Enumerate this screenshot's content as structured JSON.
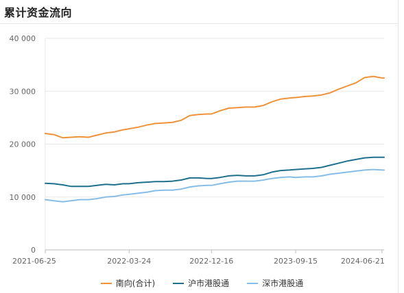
{
  "page": {
    "title": "累计资金流向"
  },
  "colors": {
    "south_total": "#f0923a",
    "sh_connect": "#1f6f8f",
    "sz_connect": "#86bde8",
    "grid": "#e8e8e8",
    "axis": "#bbbbbb"
  },
  "chart_data": {
    "type": "line",
    "title": "累计资金流向",
    "xlabel": "",
    "ylabel": "",
    "x_ticks": [
      "2021-06-25",
      "2022-03-24",
      "2022-12-16",
      "2023-09-15",
      "2024-06-21"
    ],
    "y_ticks": [
      "0",
      "10 000",
      "20 000",
      "30 000",
      "40 000"
    ],
    "ylim": [
      0,
      40000
    ],
    "grid": true,
    "legend_position": "bottom",
    "x": [
      "2021-06-25",
      "2021-07-23",
      "2021-08-20",
      "2021-09-17",
      "2021-10-15",
      "2021-11-12",
      "2021-12-10",
      "2022-01-07",
      "2022-02-04",
      "2022-03-04",
      "2022-03-24",
      "2022-04-22",
      "2022-05-20",
      "2022-06-17",
      "2022-07-15",
      "2022-08-12",
      "2022-09-09",
      "2022-10-07",
      "2022-11-04",
      "2022-12-02",
      "2022-12-16",
      "2023-01-13",
      "2023-02-10",
      "2023-03-10",
      "2023-04-07",
      "2023-05-05",
      "2023-06-02",
      "2023-06-30",
      "2023-07-28",
      "2023-08-25",
      "2023-09-15",
      "2023-10-13",
      "2023-11-10",
      "2023-12-08",
      "2024-01-05",
      "2024-02-02",
      "2024-03-01",
      "2024-03-29",
      "2024-04-26",
      "2024-05-24",
      "2024-06-21",
      "2024-06-28"
    ],
    "series": [
      {
        "name": "南向(合计)",
        "color_key": "south_total",
        "values": [
          22000,
          21800,
          21200,
          21300,
          21400,
          21300,
          21700,
          22100,
          22300,
          22700,
          22900,
          23200,
          23600,
          23900,
          24000,
          24100,
          24500,
          25400,
          25600,
          25700,
          25700,
          26300,
          26800,
          26900,
          27000,
          27000,
          27300,
          28000,
          28500,
          28700,
          28800,
          29000,
          29100,
          29300,
          29700,
          30400,
          31000,
          31600,
          32600,
          32800,
          32500,
          32500
        ]
      },
      {
        "name": "沪市港股通",
        "color_key": "sh_connect",
        "values": [
          12600,
          12500,
          12300,
          12000,
          12000,
          12000,
          12200,
          12400,
          12300,
          12500,
          12500,
          12700,
          12800,
          12900,
          12900,
          13000,
          13200,
          13600,
          13600,
          13500,
          13500,
          13700,
          14000,
          14100,
          14000,
          14000,
          14200,
          14700,
          15000,
          15100,
          15200,
          15300,
          15400,
          15600,
          16000,
          16400,
          16800,
          17100,
          17400,
          17500,
          17500,
          17500
        ]
      },
      {
        "name": "深市港股通",
        "color_key": "sz_connect",
        "values": [
          9500,
          9300,
          9100,
          9300,
          9500,
          9500,
          9700,
          10000,
          10100,
          10400,
          10500,
          10700,
          10900,
          11200,
          11300,
          11300,
          11500,
          11900,
          12100,
          12200,
          12200,
          12500,
          12800,
          13000,
          13000,
          13000,
          13200,
          13500,
          13700,
          13800,
          13700,
          13800,
          13800,
          14000,
          14300,
          14500,
          14700,
          14900,
          15100,
          15200,
          15100,
          15100
        ]
      }
    ]
  }
}
